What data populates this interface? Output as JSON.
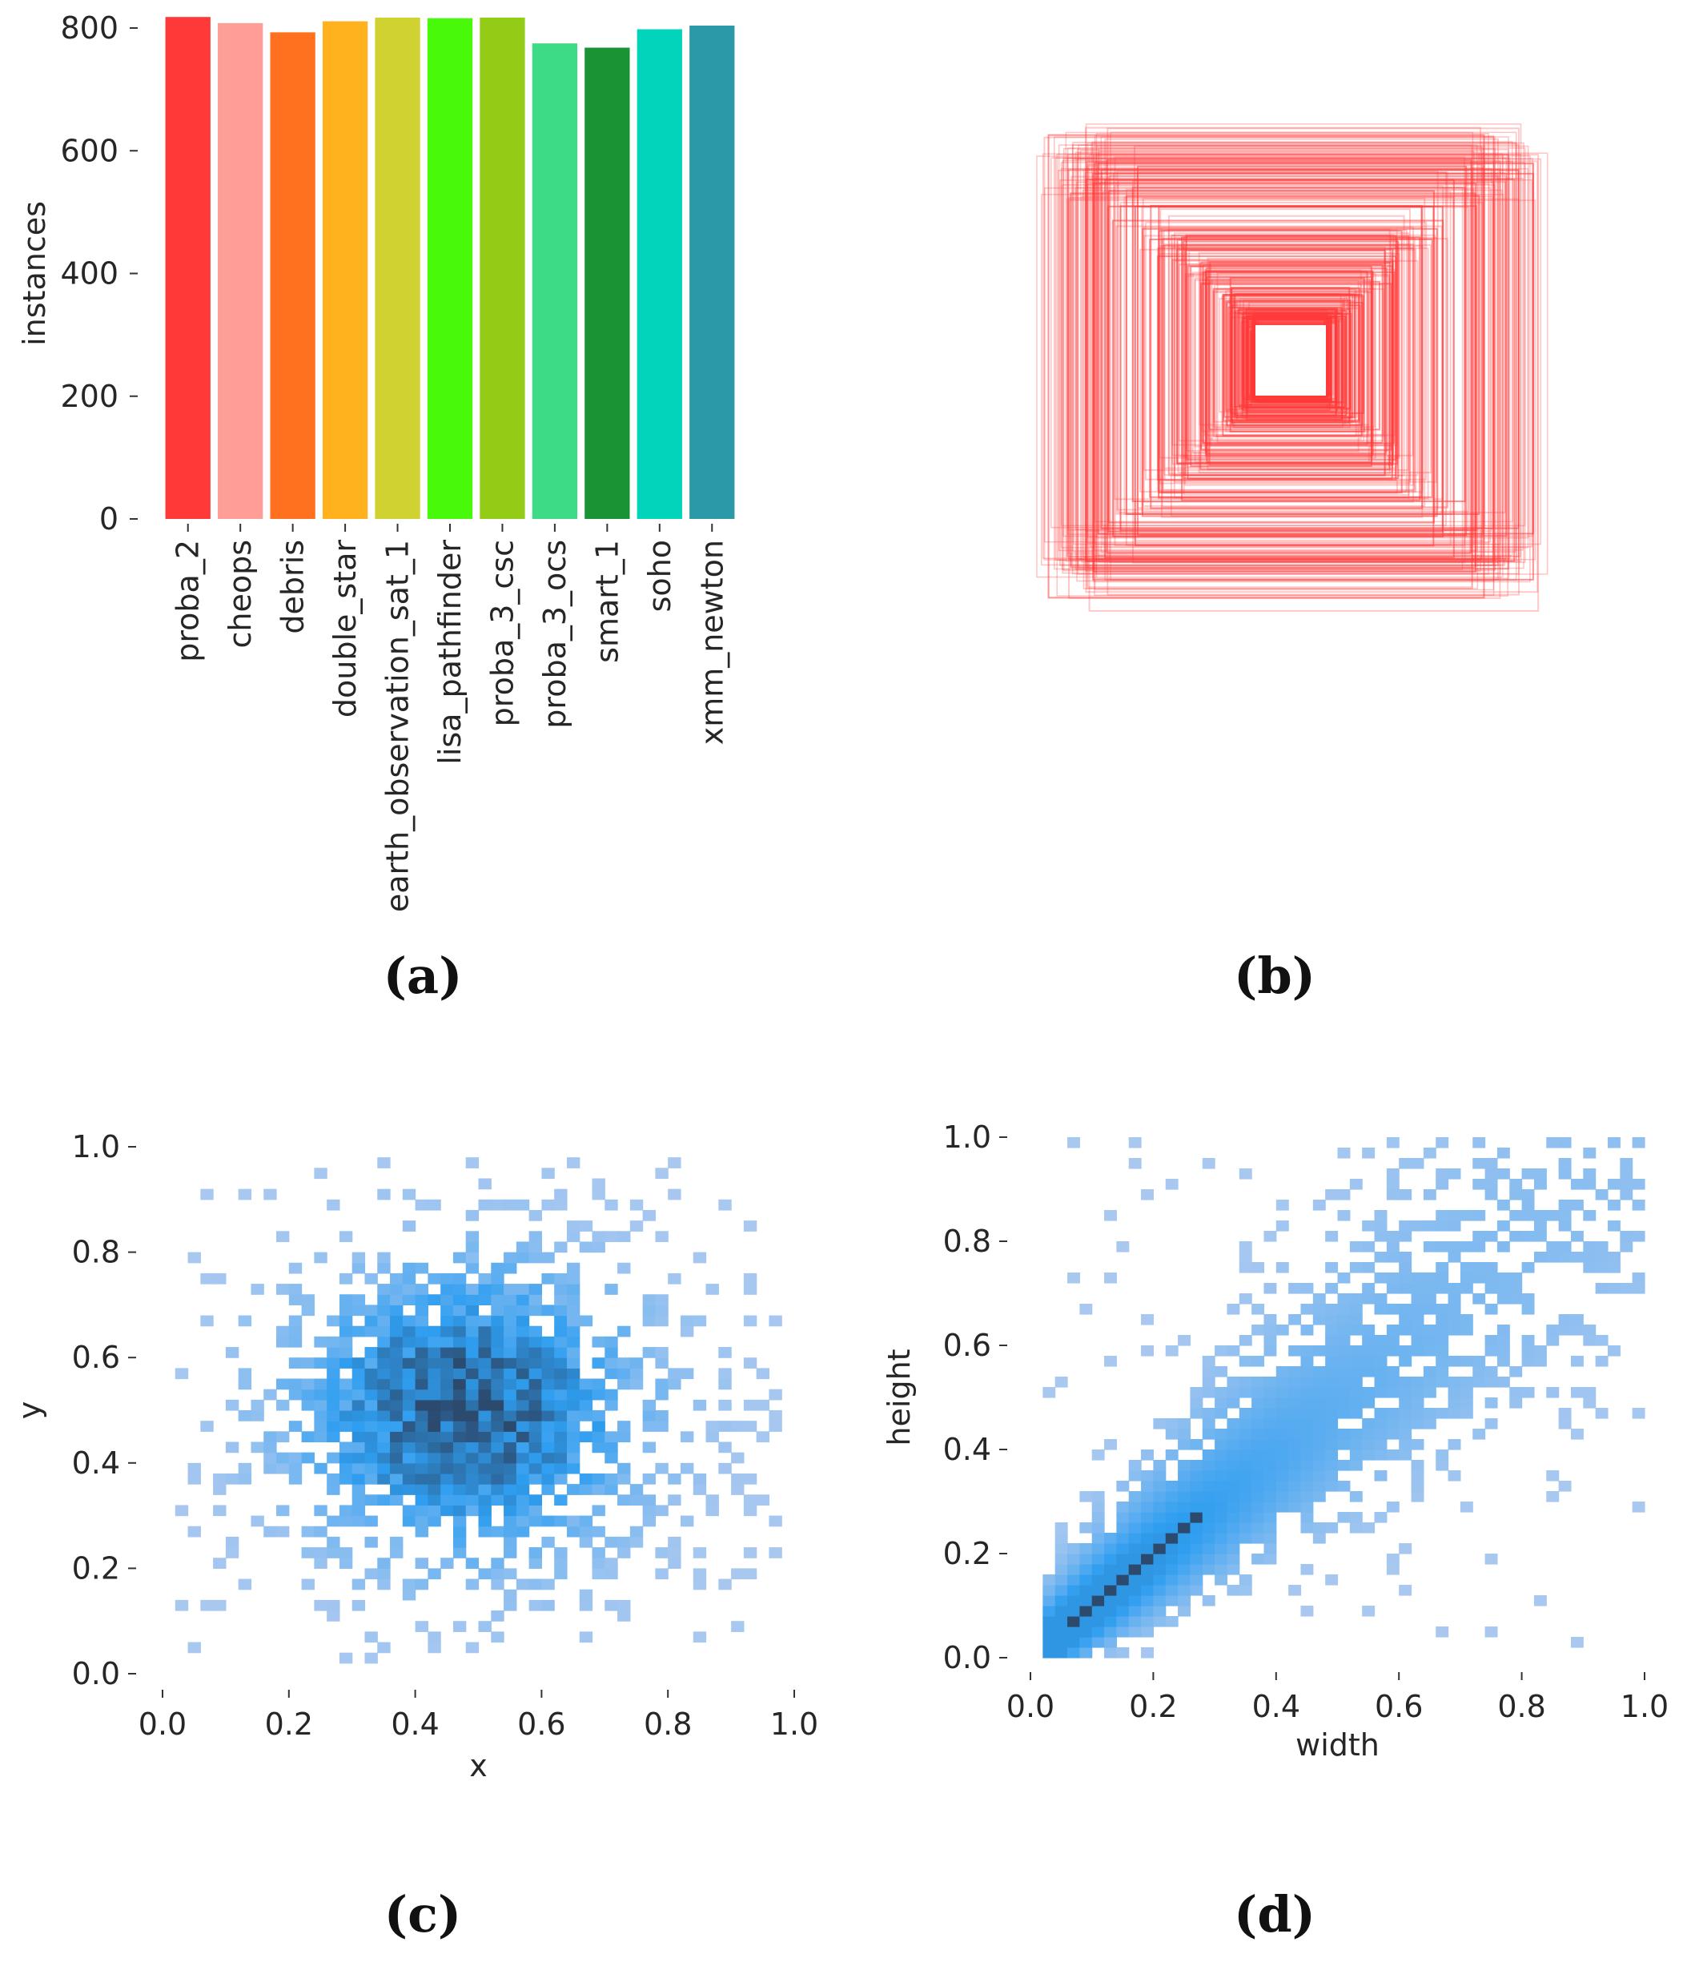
{
  "panels": {
    "a": "(a)",
    "b": "(b)",
    "c": "(c)",
    "d": "(d)"
  },
  "chart_data": [
    {
      "id": "a",
      "type": "bar",
      "ylabel": "instances",
      "ylim": [
        0,
        800
      ],
      "yticks": [
        0,
        200,
        400,
        600,
        800
      ],
      "categories": [
        "proba_2",
        "cheops",
        "debris",
        "double_star",
        "earth_observation_sat_1",
        "lisa_pathfinder",
        "proba_3_csc",
        "proba_3_ocs",
        "smart_1",
        "soho",
        "xmm_newton"
      ],
      "values": [
        818,
        808,
        793,
        811,
        817,
        816,
        817,
        775,
        768,
        798,
        804
      ],
      "colors": [
        "#ff3838",
        "#ff9d97",
        "#ff701f",
        "#ffb21d",
        "#cfd231",
        "#48f90a",
        "#92cc17",
        "#3ddb86",
        "#1a9334",
        "#00d4bb",
        "#2c99a8"
      ]
    },
    {
      "id": "b",
      "type": "other",
      "description_kind": "label bounding boxes overlay",
      "box_color": "#ff3838"
    },
    {
      "id": "c",
      "type": "heatmap",
      "xlabel": "x",
      "ylabel": "y",
      "xlim": [
        0,
        1
      ],
      "ylim": [
        0,
        1
      ],
      "xticks": [
        "0.0",
        "0.2",
        "0.4",
        "0.6",
        "0.8",
        "1.0"
      ],
      "yticks": [
        "0.0",
        "0.2",
        "0.4",
        "0.6",
        "0.8",
        "1.0"
      ],
      "bins": 50,
      "peak": {
        "x": 0.48,
        "y": 0.5
      },
      "spread": {
        "x": 0.17,
        "y": 0.17
      },
      "extent": {
        "x": [
          0.02,
          0.98
        ],
        "y": [
          0.02,
          0.98
        ]
      },
      "colormap": [
        "#a9c8f0",
        "#2f9ef0",
        "#2b4a6e"
      ]
    },
    {
      "id": "d",
      "type": "heatmap",
      "xlabel": "width",
      "ylabel": "height",
      "xlim": [
        0,
        1
      ],
      "ylim": [
        0,
        1
      ],
      "xticks": [
        "0.0",
        "0.2",
        "0.4",
        "0.6",
        "0.8",
        "1.0"
      ],
      "yticks": [
        "0.0",
        "0.2",
        "0.4",
        "0.6",
        "0.8",
        "1.0"
      ],
      "bins": 50,
      "dense_diagonal": {
        "from": 0.06,
        "to": 0.27
      },
      "colormap": [
        "#a9c8f0",
        "#2f9ef0",
        "#2b4a6e"
      ]
    }
  ]
}
